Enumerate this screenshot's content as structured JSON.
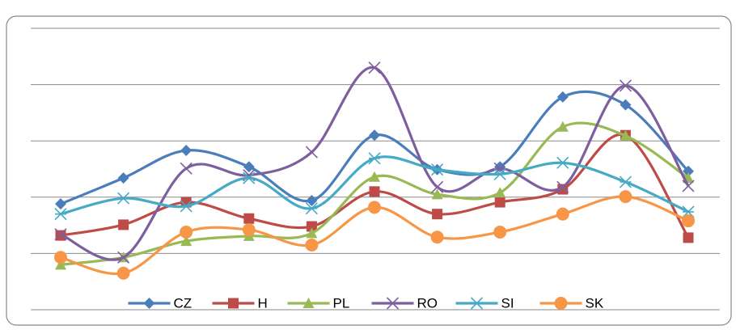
{
  "chart_data": {
    "type": "line",
    "smooth": true,
    "grid": true,
    "legend": "bottom",
    "categories": [
      null,
      null,
      null,
      null,
      null,
      null,
      null,
      null,
      null,
      null,
      null
    ],
    "ylim": [
      0,
      5
    ],
    "yticks": [
      0,
      1,
      2,
      3,
      4,
      5
    ],
    "series": [
      {
        "name": "CZ",
        "color": "#4a7ebb",
        "marker": "diamond",
        "values": [
          1.88,
          2.34,
          2.83,
          2.54,
          1.94,
          3.1,
          2.49,
          2.54,
          3.78,
          3.64,
          2.46
        ]
      },
      {
        "name": "H",
        "color": "#be4b48",
        "marker": "square",
        "values": [
          1.32,
          1.51,
          1.91,
          1.62,
          1.48,
          2.1,
          1.7,
          1.91,
          2.14,
          3.1,
          1.28
        ]
      },
      {
        "name": "PL",
        "color": "#98b954",
        "marker": "triangle",
        "values": [
          0.8,
          0.93,
          1.22,
          1.31,
          1.36,
          2.36,
          2.05,
          2.08,
          3.25,
          3.09,
          2.34
        ]
      },
      {
        "name": "RO",
        "color": "#7d5fa0",
        "marker": "x",
        "values": [
          1.34,
          0.93,
          2.51,
          2.39,
          2.8,
          4.3,
          2.18,
          2.51,
          2.18,
          3.98,
          2.2
        ]
      },
      {
        "name": "SI",
        "color": "#46aac5",
        "marker": "star",
        "values": [
          1.7,
          1.98,
          1.84,
          2.34,
          1.8,
          2.69,
          2.49,
          2.41,
          2.61,
          2.27,
          1.74
        ]
      },
      {
        "name": "SK",
        "color": "#f79646",
        "marker": "circle",
        "values": [
          0.93,
          0.65,
          1.38,
          1.42,
          1.15,
          1.82,
          1.29,
          1.38,
          1.7,
          2.01,
          1.58
        ]
      }
    ]
  }
}
